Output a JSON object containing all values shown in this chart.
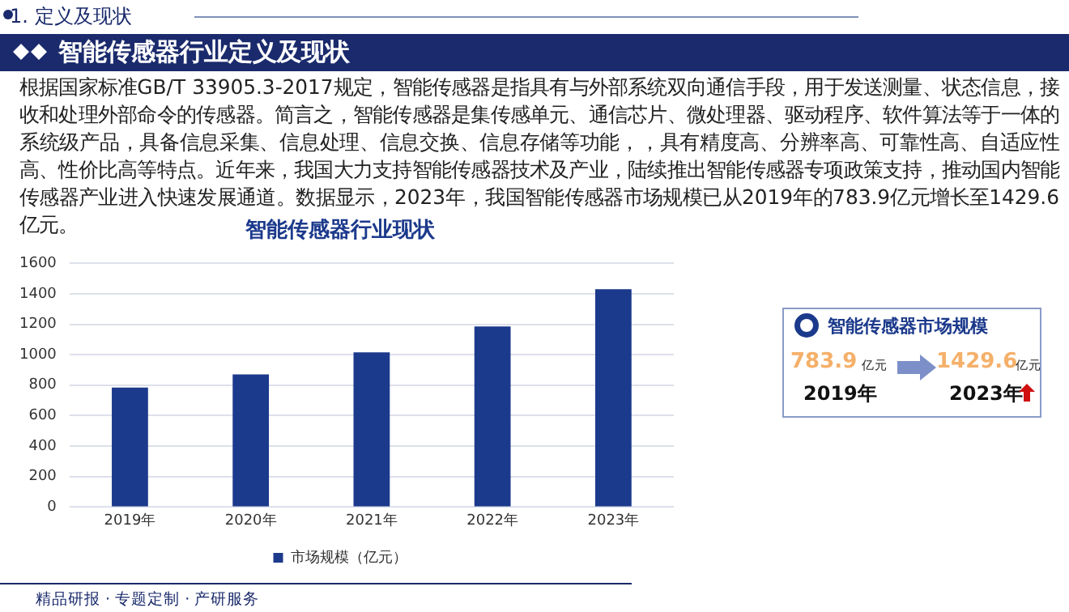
{
  "chart_data": {
    "type": "bar",
    "title": "智能传感器行业现状",
    "categories": [
      "2019年",
      "2020年",
      "2021年",
      "2022年",
      "2023年"
    ],
    "series": [
      {
        "name": "市场规模（亿元）",
        "color": "#1c3a8c",
        "values": [
          783.9,
          870,
          1015,
          1185,
          1429.6
        ]
      }
    ],
    "ylim": [
      0,
      1600
    ],
    "yticks": [
      0,
      200,
      400,
      600,
      800,
      1000,
      1200,
      1400,
      1600
    ],
    "grid": "y",
    "legend": "bottom",
    "annotations": [
      "1. 定义及现状",
      "智能传感器行业定义及现状",
      "根据国家标准GB/T 33905.3-2017规定，智能传感器是指具有与外部系统双向通信手段，用于发送测量、状态信息，接收和处理外部命令的传感器。简言之，智能传感器是集传感单元、通信芯片、微处理器、驱动程序、软件算法等于一体的系统级产品，具备信息采集、信息处理、信息交换、信息存储等功能，，具有精度高、分辨率高、可靠性高、自适应性高、性价比高等特点。近年来，我国大力支持智能传感器技术及产业，陆续推出智能传感器专项政策支持，推动国内智能传感器产业进入快速发展通道。数据显示，2023年，我国智能传感器市场规模已从2019年的783.9亿元增长至1429.6亿元。",
      "智能传感器市场规模",
      "783.9",
      "亿元",
      "2019年",
      "1429.6",
      "亿元",
      "2023年",
      "精品研报 · 专题定制 · 产研服务"
    ]
  }
}
